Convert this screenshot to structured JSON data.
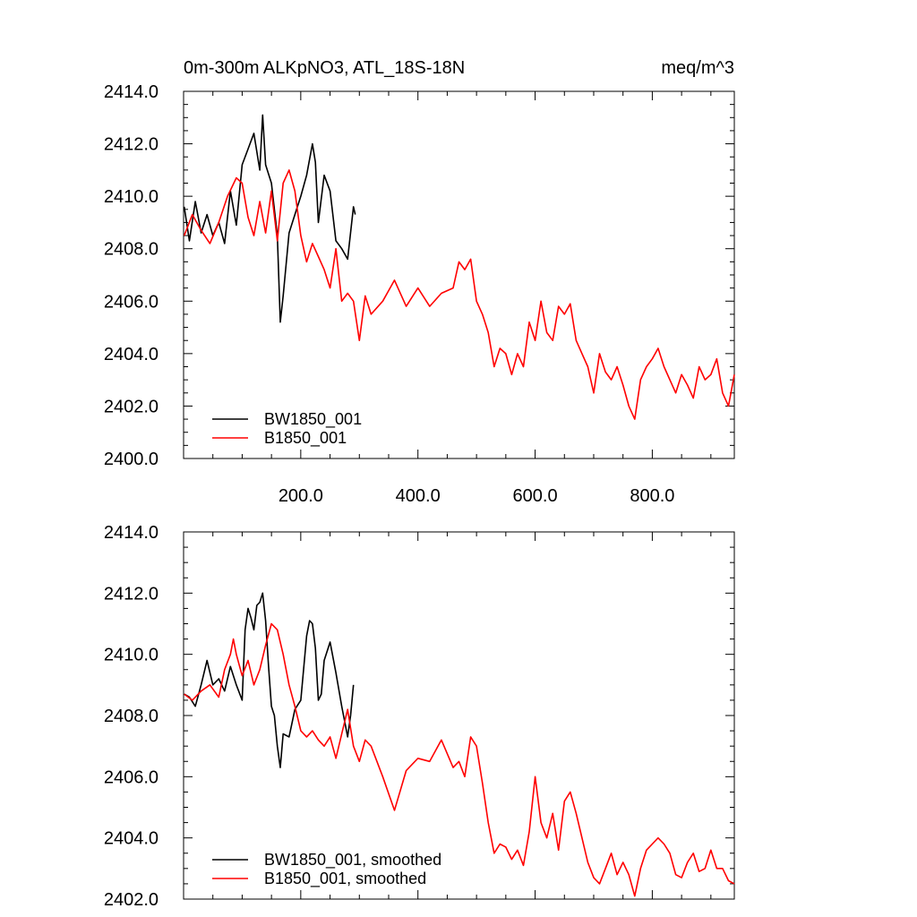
{
  "chart_data": [
    {
      "type": "line",
      "title": "0m-300m ALKpNO3, ATL_18S-18N",
      "units": "meq/m^3",
      "xlim": [
        0,
        940
      ],
      "ylim": [
        2400.0,
        2414.0
      ],
      "y_ticks": [
        "2400.0",
        "2402.0",
        "2404.0",
        "2406.0",
        "2408.0",
        "2410.0",
        "2412.0",
        "2414.0"
      ],
      "x_ticks": [
        "200.0",
        "400.0",
        "600.0",
        "800.0"
      ],
      "legend": "bottom-left",
      "series": [
        {
          "name": "BW1850_001",
          "color": "#000000",
          "x": [
            1,
            10,
            20,
            30,
            40,
            50,
            60,
            70,
            80,
            90,
            100,
            110,
            120,
            130,
            135,
            140,
            150,
            160,
            165,
            170,
            180,
            190,
            200,
            210,
            220,
            225,
            230,
            240,
            250,
            260,
            270,
            280,
            290,
            293
          ],
          "y": [
            2409.6,
            2408.3,
            2409.8,
            2408.6,
            2409.3,
            2408.5,
            2409.0,
            2408.2,
            2410.2,
            2408.9,
            2411.2,
            2411.8,
            2412.4,
            2411.0,
            2413.1,
            2411.2,
            2410.5,
            2408.5,
            2405.2,
            2406.2,
            2408.6,
            2409.3,
            2410.0,
            2410.8,
            2412.0,
            2411.3,
            2409.0,
            2410.8,
            2410.2,
            2408.3,
            2408.0,
            2407.6,
            2409.6,
            2409.3
          ]
        },
        {
          "name": "B1850_001",
          "color": "#ff0000",
          "x": [
            1,
            15,
            30,
            45,
            60,
            75,
            90,
            100,
            110,
            120,
            130,
            140,
            150,
            160,
            170,
            180,
            190,
            200,
            210,
            220,
            230,
            240,
            250,
            260,
            270,
            280,
            290,
            300,
            310,
            320,
            340,
            360,
            380,
            400,
            420,
            440,
            460,
            470,
            480,
            490,
            500,
            510,
            520,
            530,
            540,
            550,
            560,
            570,
            580,
            590,
            600,
            610,
            620,
            630,
            640,
            650,
            660,
            670,
            680,
            690,
            700,
            710,
            720,
            730,
            740,
            750,
            760,
            770,
            780,
            790,
            800,
            810,
            820,
            830,
            840,
            850,
            860,
            870,
            880,
            890,
            900,
            910,
            920,
            930,
            940
          ],
          "y": [
            2408.5,
            2409.3,
            2408.7,
            2408.2,
            2409.0,
            2410.0,
            2410.7,
            2410.5,
            2409.2,
            2408.5,
            2409.8,
            2408.6,
            2410.2,
            2408.3,
            2410.5,
            2411.0,
            2410.2,
            2408.5,
            2407.5,
            2408.2,
            2407.7,
            2407.2,
            2406.5,
            2408.0,
            2406.0,
            2406.3,
            2406.0,
            2404.5,
            2406.2,
            2405.5,
            2406.0,
            2406.8,
            2405.8,
            2406.5,
            2405.8,
            2406.3,
            2406.5,
            2407.5,
            2407.2,
            2407.6,
            2406.0,
            2405.5,
            2404.8,
            2403.5,
            2404.2,
            2404.0,
            2403.2,
            2404.0,
            2403.5,
            2405.2,
            2404.5,
            2406.0,
            2404.8,
            2404.5,
            2405.8,
            2405.5,
            2405.9,
            2404.5,
            2404.0,
            2403.5,
            2402.5,
            2404.0,
            2403.3,
            2403.0,
            2403.5,
            2402.8,
            2402.0,
            2401.5,
            2403.0,
            2403.5,
            2403.8,
            2404.2,
            2403.5,
            2403.0,
            2402.5,
            2403.2,
            2402.8,
            2402.3,
            2403.5,
            2403.0,
            2403.2,
            2403.8,
            2402.5,
            2402.0,
            2403.2
          ]
        }
      ]
    },
    {
      "type": "line",
      "xlim": [
        0,
        940
      ],
      "ylim": [
        2402.0,
        2414.0
      ],
      "y_ticks": [
        "2402.0",
        "2404.0",
        "2406.0",
        "2408.0",
        "2410.0",
        "2412.0",
        "2414.0"
      ],
      "legend": "bottom-left",
      "series": [
        {
          "name": "BW1850_001, smoothed",
          "color": "#000000",
          "x": [
            1,
            10,
            20,
            30,
            40,
            50,
            60,
            70,
            80,
            90,
            100,
            105,
            110,
            115,
            120,
            125,
            130,
            135,
            140,
            145,
            150,
            155,
            160,
            165,
            170,
            180,
            190,
            200,
            210,
            215,
            220,
            225,
            230,
            235,
            240,
            250,
            260,
            270,
            280,
            285,
            290
          ],
          "y": [
            2408.7,
            2408.6,
            2408.3,
            2409.0,
            2409.8,
            2409.0,
            2409.2,
            2408.8,
            2409.6,
            2409.0,
            2408.5,
            2410.8,
            2411.5,
            2411.2,
            2410.8,
            2411.6,
            2411.7,
            2412.0,
            2411.1,
            2409.6,
            2408.3,
            2408.0,
            2407.0,
            2406.3,
            2407.4,
            2407.3,
            2408.2,
            2408.5,
            2410.6,
            2411.1,
            2411.0,
            2410.2,
            2408.5,
            2408.7,
            2409.8,
            2410.4,
            2409.4,
            2408.3,
            2407.3,
            2408.0,
            2409.0
          ]
        },
        {
          "name": "B1850_001, smoothed",
          "color": "#ff0000",
          "x": [
            1,
            15,
            30,
            45,
            60,
            70,
            80,
            85,
            90,
            100,
            110,
            120,
            130,
            140,
            150,
            160,
            170,
            180,
            190,
            200,
            210,
            220,
            230,
            240,
            250,
            260,
            270,
            280,
            290,
            300,
            310,
            320,
            340,
            360,
            380,
            400,
            420,
            440,
            460,
            470,
            480,
            490,
            500,
            510,
            520,
            530,
            540,
            550,
            560,
            570,
            580,
            590,
            600,
            610,
            620,
            630,
            640,
            650,
            660,
            670,
            680,
            690,
            700,
            710,
            720,
            730,
            740,
            750,
            760,
            770,
            780,
            790,
            800,
            810,
            820,
            830,
            840,
            850,
            860,
            870,
            880,
            890,
            900,
            910,
            920,
            930,
            940
          ],
          "y": [
            2408.7,
            2408.5,
            2408.8,
            2409.0,
            2408.6,
            2409.5,
            2410.0,
            2410.5,
            2410.0,
            2409.3,
            2409.8,
            2409.0,
            2409.5,
            2410.3,
            2411.0,
            2410.8,
            2410.0,
            2409.0,
            2408.3,
            2407.5,
            2407.3,
            2407.5,
            2407.2,
            2407.0,
            2407.3,
            2406.6,
            2407.4,
            2408.2,
            2407.0,
            2406.5,
            2407.2,
            2407.0,
            2406.0,
            2404.9,
            2406.2,
            2406.6,
            2406.5,
            2407.2,
            2406.3,
            2406.5,
            2406.0,
            2407.3,
            2407.0,
            2405.8,
            2404.5,
            2403.5,
            2403.8,
            2403.7,
            2403.3,
            2403.6,
            2403.1,
            2404.2,
            2406.0,
            2404.5,
            2404.0,
            2404.8,
            2403.6,
            2405.2,
            2405.5,
            2404.8,
            2404.0,
            2403.2,
            2402.7,
            2402.5,
            2403.0,
            2403.5,
            2402.8,
            2403.2,
            2402.8,
            2402.1,
            2403.0,
            2403.6,
            2403.8,
            2404.0,
            2403.8,
            2403.5,
            2402.8,
            2402.7,
            2403.2,
            2403.5,
            2402.9,
            2403.0,
            2403.6,
            2403.0,
            2403.0,
            2402.6,
            2402.5
          ]
        }
      ]
    }
  ]
}
